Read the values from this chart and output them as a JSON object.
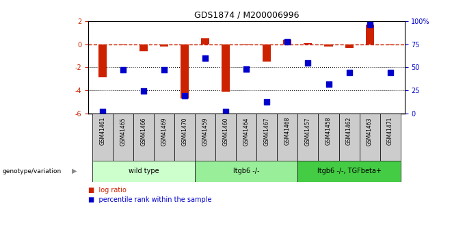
{
  "title": "GDS1874 / M200006996",
  "samples": [
    "GSM41461",
    "GSM41465",
    "GSM41466",
    "GSM41469",
    "GSM41470",
    "GSM41459",
    "GSM41460",
    "GSM41464",
    "GSM41467",
    "GSM41468",
    "GSM41457",
    "GSM41458",
    "GSM41462",
    "GSM41463",
    "GSM41471"
  ],
  "log_ratio": [
    -2.9,
    -0.1,
    -0.6,
    -0.2,
    -4.7,
    0.5,
    -4.1,
    -0.05,
    -1.5,
    0.4,
    0.1,
    -0.2,
    -0.3,
    1.7,
    -0.05
  ],
  "percentile": [
    2,
    47,
    24,
    47,
    19,
    60,
    2,
    48,
    12,
    78,
    55,
    32,
    44,
    96,
    44
  ],
  "groups": [
    {
      "label": "wild type",
      "indices": [
        0,
        1,
        2,
        3,
        4
      ],
      "color": "#ccffcc"
    },
    {
      "label": "ltgb6 -/-",
      "indices": [
        5,
        6,
        7,
        8,
        9
      ],
      "color": "#99ee99"
    },
    {
      "label": "ltgb6 -/-, TGFbeta+",
      "indices": [
        10,
        11,
        12,
        13,
        14
      ],
      "color": "#44cc44"
    }
  ],
  "ylim_left": [
    -6,
    2
  ],
  "ylim_right": [
    0,
    100
  ],
  "yticks_left": [
    -6,
    -4,
    -2,
    0,
    2
  ],
  "yticks_right": [
    0,
    25,
    50,
    75,
    100
  ],
  "ytick_labels_right": [
    "0",
    "25",
    "50",
    "75",
    "100%"
  ],
  "hlines": [
    -2,
    -4
  ],
  "bar_color": "#cc2200",
  "dot_color": "#0000cc",
  "dashed_line_color": "#cc2200",
  "bar_width": 0.4,
  "dot_size": 30,
  "group_label": "genotype/variation",
  "legend_log": "log ratio",
  "legend_pct": "percentile rank within the sample",
  "tick_label_bg": "#cccccc",
  "bg_color": "#ffffff",
  "left_ytick_color": "#cc2200",
  "right_ytick_color": "#0000cc"
}
